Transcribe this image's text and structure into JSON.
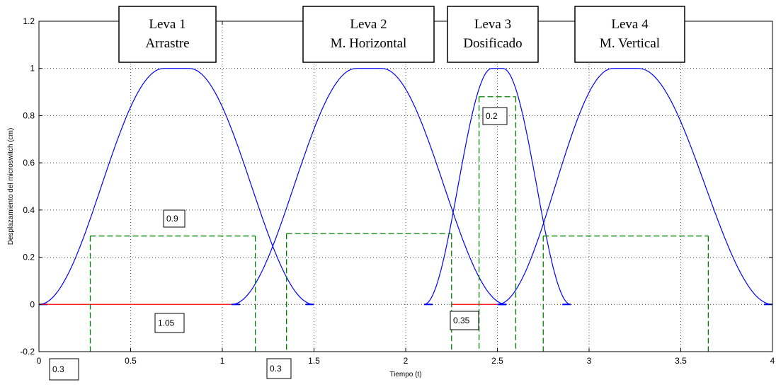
{
  "chart_data": {
    "type": "line",
    "xlabel": "Tiempo (t)",
    "ylabel": "Desplazamiento del microswitch (cm)",
    "xlim": [
      0,
      4
    ],
    "ylim": [
      -0.2,
      1.2
    ],
    "x_ticks": [
      "0",
      "0.5",
      "1",
      "1.5",
      "2",
      "2.5",
      "3",
      "3.5",
      "4"
    ],
    "y_ticks": [
      "-0.2",
      "0",
      "0.2",
      "0.4",
      "0.6",
      "0.8",
      "1",
      "1.2"
    ],
    "grid": true,
    "series_color": "#0000ff",
    "baseline_color": "#ff0000",
    "guide_color": "#008000",
    "cams": [
      {
        "label_lines": [
          "Leva 1",
          "Arrastre"
        ],
        "x_start": 0.0,
        "x_end": 1.5,
        "peak_start": 0.68,
        "peak_end": 0.82,
        "peak": 1.0
      },
      {
        "label_lines": [
          "Leva 2",
          "M. Horizontal"
        ],
        "x_start": 1.05,
        "x_end": 2.55,
        "peak_start": 1.73,
        "peak_end": 1.87,
        "peak": 1.0
      },
      {
        "label_lines": [
          "Leva 3",
          "Dosificado"
        ],
        "x_start": 2.1,
        "x_end": 2.9,
        "peak_start": 2.47,
        "peak_end": 2.53,
        "peak": 1.0
      },
      {
        "label_lines": [
          "Leva 4",
          "M. Vertical"
        ],
        "x_start": 2.5,
        "x_end": 4.0,
        "peak_start": 3.13,
        "peak_end": 3.27,
        "peak": 1.0
      }
    ],
    "baselines": [
      {
        "x_start": 0.0,
        "x_end": 1.05,
        "y": 0
      },
      {
        "x_start": 2.25,
        "x_end": 2.5,
        "y": 0
      }
    ],
    "guide_levels": [
      {
        "x_start": 0.28,
        "x_end": 1.18,
        "y": 0.29
      },
      {
        "x_start": 1.35,
        "x_end": 2.25,
        "y": 0.3
      },
      {
        "x_start": 2.4,
        "x_end": 2.6,
        "y": 0.88
      },
      {
        "x_start": 2.75,
        "x_end": 3.65,
        "y": 0.29
      }
    ],
    "annotations": [
      "0.9",
      "1.05",
      "0.3",
      "0.3",
      "0.2",
      "0.35"
    ]
  }
}
